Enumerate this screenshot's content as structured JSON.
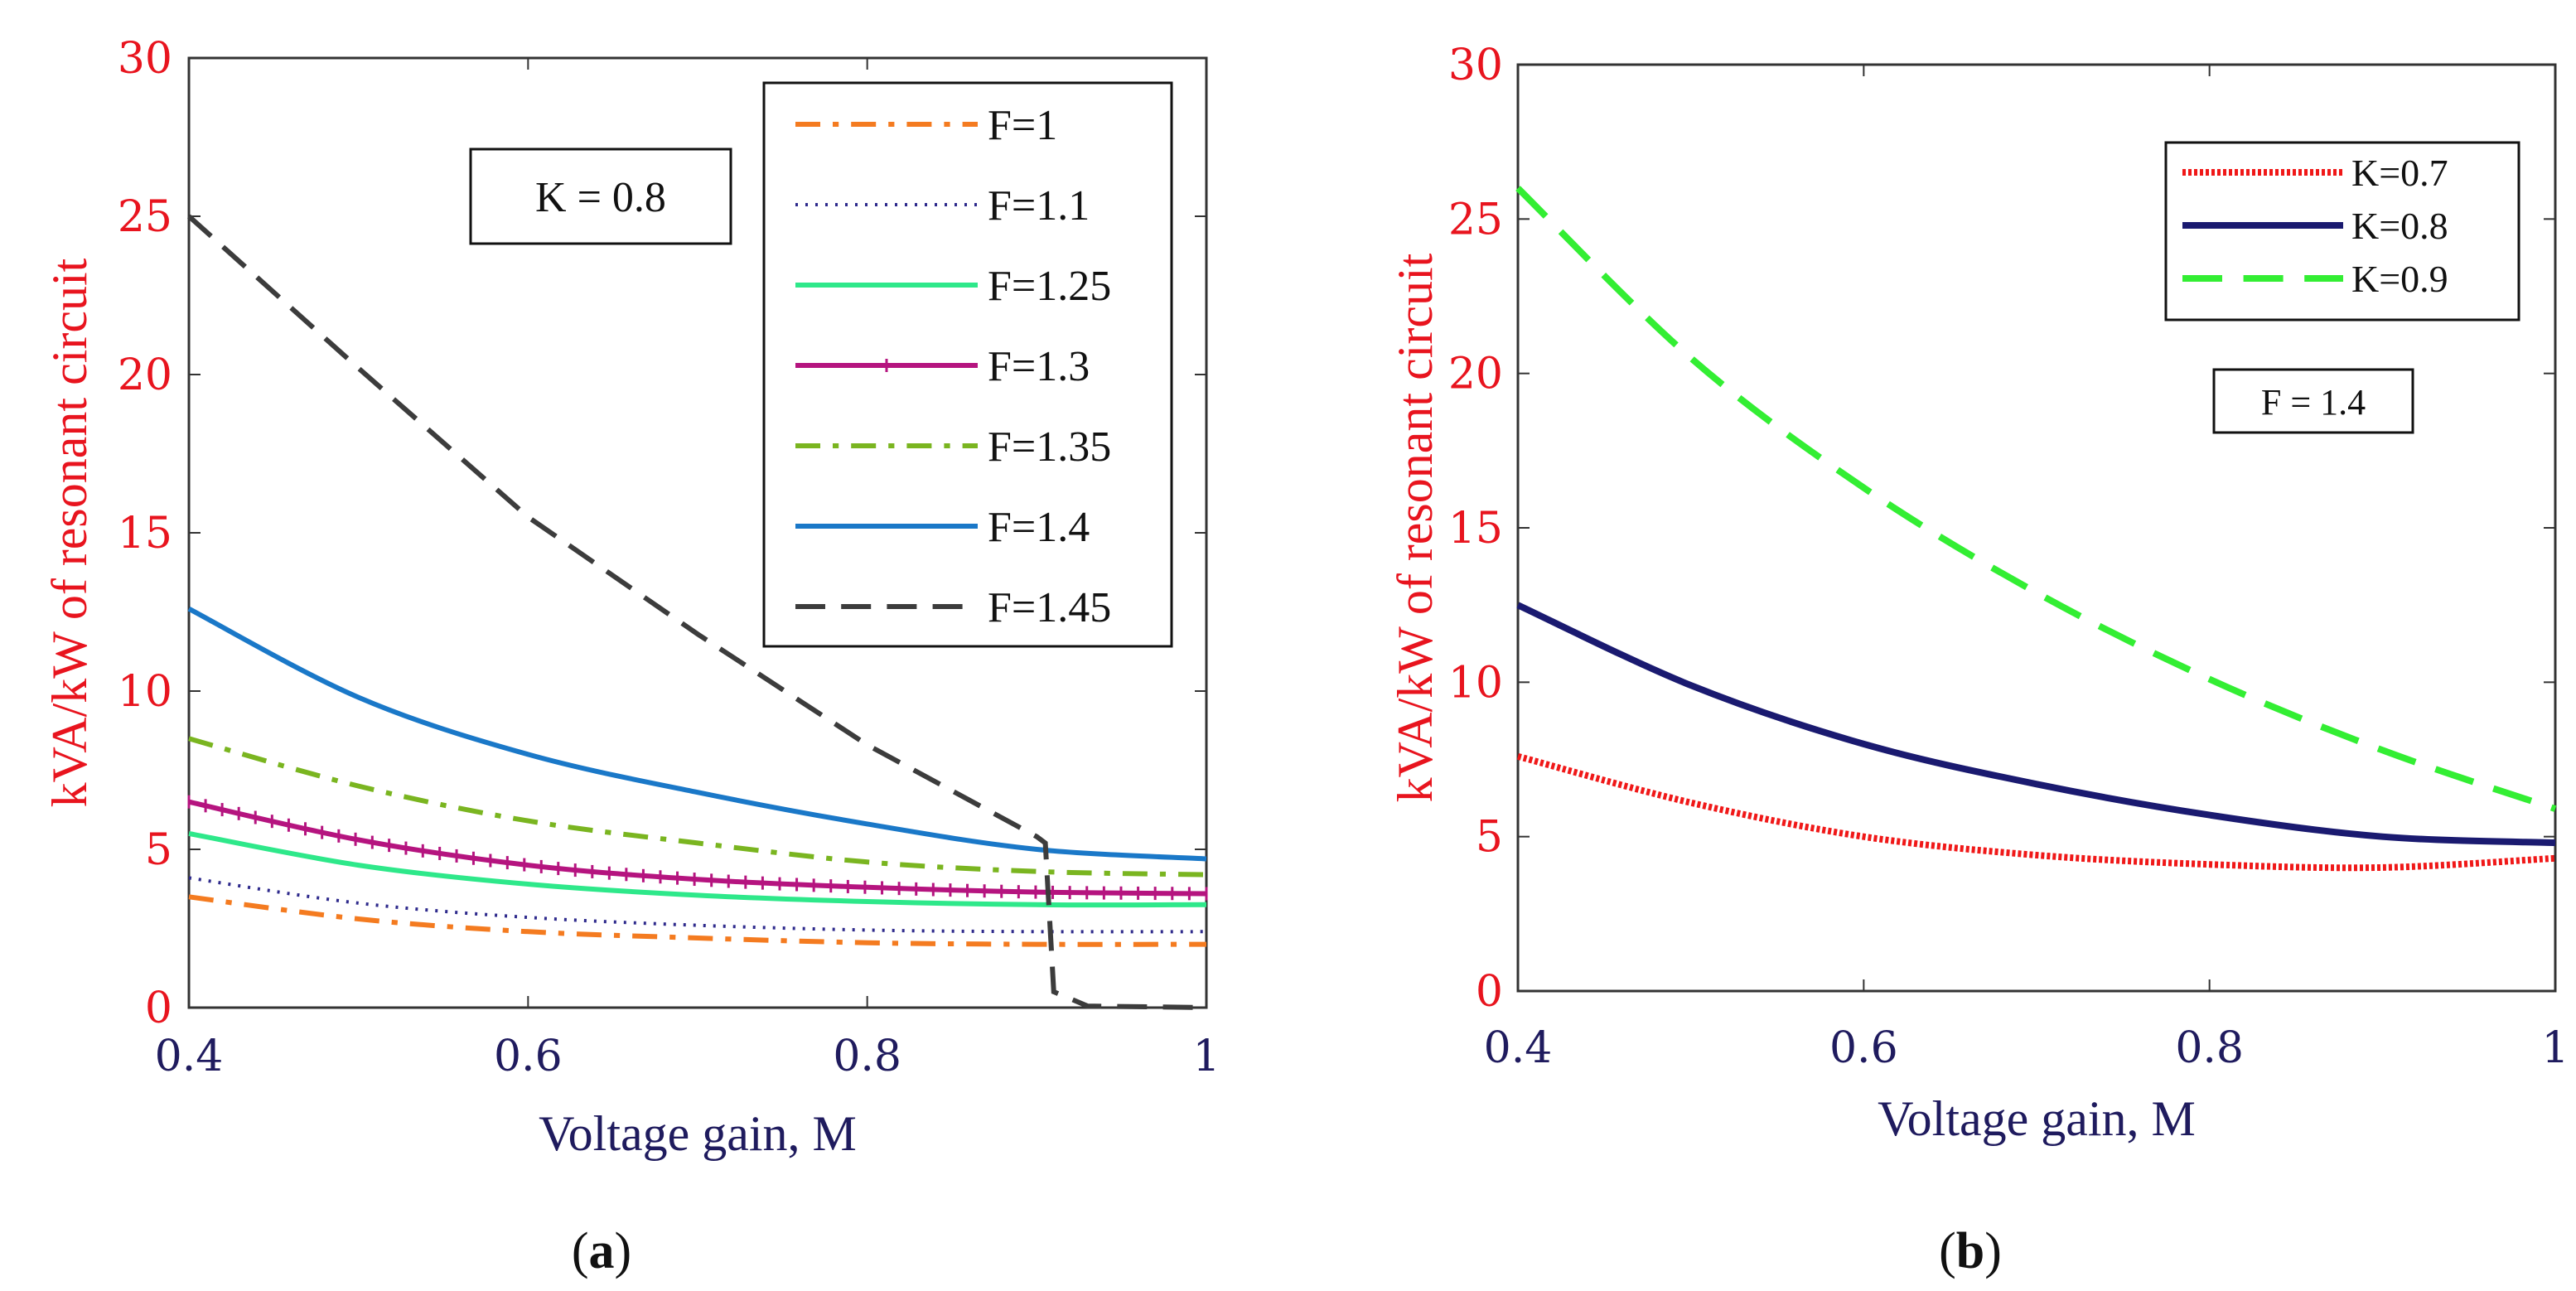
{
  "chart_data": [
    {
      "type": "line",
      "caption": "a",
      "xlabel": "Voltage gain, M",
      "ylabel": "kVA/kW of resonant circuit",
      "xlim": [
        0.4,
        1
      ],
      "ylim": [
        0,
        30
      ],
      "xticks": [
        "0.4",
        "0.6",
        "0.8",
        "1"
      ],
      "yticks": [
        "0",
        "5",
        "10",
        "15",
        "20",
        "25",
        "30"
      ],
      "annotation": "K = 0.8",
      "legend_position": "top-right",
      "series": [
        {
          "name": "F=1",
          "color": "#f47b20",
          "style": "dashdot",
          "x": [
            0.4,
            0.5,
            0.6,
            0.7,
            0.8,
            0.9,
            1.0
          ],
          "y": [
            3.5,
            2.8,
            2.4,
            2.2,
            2.05,
            2.0,
            2.0
          ]
        },
        {
          "name": "F=1.1",
          "color": "#2e2a8c",
          "style": "dotted",
          "x": [
            0.4,
            0.5,
            0.6,
            0.7,
            0.8,
            0.9,
            1.0
          ],
          "y": [
            4.1,
            3.3,
            2.85,
            2.6,
            2.45,
            2.4,
            2.4
          ]
        },
        {
          "name": "F=1.25",
          "color": "#2ee88a",
          "style": "solid",
          "x": [
            0.4,
            0.5,
            0.6,
            0.7,
            0.8,
            0.9,
            1.0
          ],
          "y": [
            5.5,
            4.5,
            3.9,
            3.55,
            3.35,
            3.25,
            3.25
          ]
        },
        {
          "name": "F=1.3",
          "color": "#b5147f",
          "style": "solid-marker",
          "x": [
            0.4,
            0.5,
            0.6,
            0.7,
            0.8,
            0.9,
            1.0
          ],
          "y": [
            6.5,
            5.3,
            4.5,
            4.05,
            3.8,
            3.65,
            3.6
          ]
        },
        {
          "name": "F=1.35",
          "color": "#7ab520",
          "style": "dashdot",
          "x": [
            0.4,
            0.5,
            0.6,
            0.7,
            0.8,
            0.9,
            1.0
          ],
          "y": [
            8.5,
            7.0,
            5.9,
            5.2,
            4.6,
            4.3,
            4.2
          ]
        },
        {
          "name": "F=1.4",
          "color": "#1a78c8",
          "style": "solid",
          "x": [
            0.4,
            0.5,
            0.6,
            0.7,
            0.8,
            0.9,
            1.0
          ],
          "y": [
            12.6,
            9.8,
            8.0,
            6.8,
            5.8,
            5.0,
            4.7
          ]
        },
        {
          "name": "F=1.45",
          "color": "#3c3c3c",
          "style": "dashed",
          "x": [
            0.4,
            0.5,
            0.6,
            0.7,
            0.8,
            0.9,
            0.905,
            0.91,
            0.93,
            1.0
          ],
          "y": [
            25,
            20.2,
            15.5,
            11.8,
            8.3,
            5.4,
            5.2,
            0.5,
            0.05,
            0.0
          ]
        }
      ]
    },
    {
      "type": "line",
      "caption": "b",
      "xlabel": "Voltage gain, M",
      "ylabel": "kVA/kW of resonant circuit",
      "xlim": [
        0.4,
        1
      ],
      "ylim": [
        0,
        30
      ],
      "xticks": [
        "0.4",
        "0.6",
        "0.8",
        "1"
      ],
      "yticks": [
        "0",
        "5",
        "10",
        "15",
        "20",
        "25",
        "30"
      ],
      "annotation": "F = 1.4",
      "legend_position": "top-right",
      "series": [
        {
          "name": "K=0.7",
          "color": "#f01818",
          "style": "dotted-thick",
          "x": [
            0.4,
            0.5,
            0.6,
            0.7,
            0.8,
            0.9,
            1.0
          ],
          "y": [
            7.6,
            6.1,
            5.0,
            4.4,
            4.1,
            4.0,
            4.3
          ]
        },
        {
          "name": "K=0.8",
          "color": "#1a1a70",
          "style": "solid",
          "x": [
            0.4,
            0.5,
            0.6,
            0.7,
            0.8,
            0.9,
            1.0
          ],
          "y": [
            12.5,
            9.9,
            8.0,
            6.7,
            5.7,
            5.0,
            4.8
          ]
        },
        {
          "name": "K=0.9",
          "color": "#33ee33",
          "style": "dashed",
          "x": [
            0.4,
            0.5,
            0.6,
            0.7,
            0.8,
            0.9,
            1.0
          ],
          "y": [
            26.0,
            20.5,
            16.3,
            12.9,
            10.1,
            7.8,
            5.9
          ]
        }
      ]
    }
  ]
}
